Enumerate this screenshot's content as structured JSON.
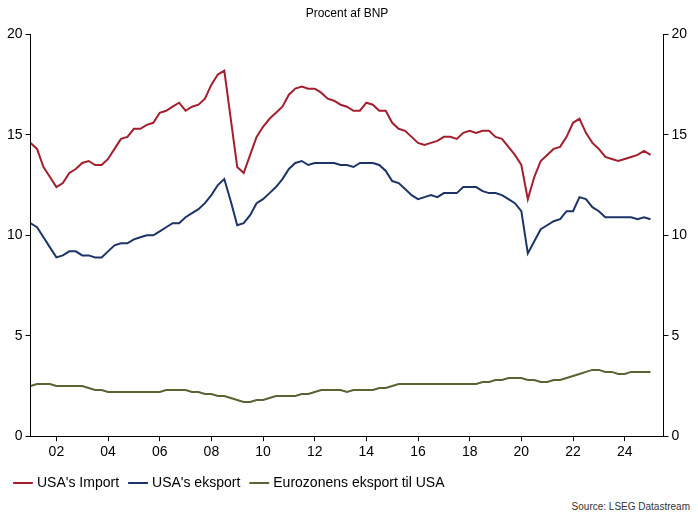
{
  "chart_data": {
    "type": "line",
    "title": "Procent af BNP",
    "source": "Source: LSEG Datastream",
    "x": [
      2001,
      2001.25,
      2001.5,
      2001.75,
      2002,
      2002.25,
      2002.5,
      2002.75,
      2003,
      2003.25,
      2003.5,
      2003.75,
      2004,
      2004.25,
      2004.5,
      2004.75,
      2005,
      2005.25,
      2005.5,
      2005.75,
      2006,
      2006.25,
      2006.5,
      2006.75,
      2007,
      2007.25,
      2007.5,
      2007.75,
      2008,
      2008.25,
      2008.5,
      2008.75,
      2009,
      2009.25,
      2009.5,
      2009.75,
      2010,
      2010.25,
      2010.5,
      2010.75,
      2011,
      2011.25,
      2011.5,
      2011.75,
      2012,
      2012.25,
      2012.5,
      2012.75,
      2013,
      2013.25,
      2013.5,
      2013.75,
      2014,
      2014.25,
      2014.5,
      2014.75,
      2015,
      2015.25,
      2015.5,
      2015.75,
      2016,
      2016.25,
      2016.5,
      2016.75,
      2017,
      2017.25,
      2017.5,
      2017.75,
      2018,
      2018.25,
      2018.5,
      2018.75,
      2019,
      2019.25,
      2019.5,
      2019.75,
      2020,
      2020.25,
      2020.5,
      2020.75,
      2021,
      2021.25,
      2021.5,
      2021.75,
      2022,
      2022.25,
      2022.5,
      2022.75,
      2023,
      2023.25,
      2023.5,
      2023.75,
      2024,
      2024.25,
      2024.5,
      2024.75,
      2025
    ],
    "series": [
      {
        "name": "USA's Import",
        "color": "#a31f2e",
        "values": [
          14.6,
          14.3,
          13.4,
          12.9,
          12.4,
          12.6,
          13.1,
          13.3,
          13.6,
          13.7,
          13.5,
          13.5,
          13.8,
          14.3,
          14.8,
          14.9,
          15.3,
          15.3,
          15.5,
          15.6,
          16.1,
          16.2,
          16.4,
          16.6,
          16.2,
          16.4,
          16.5,
          16.8,
          17.5,
          18.0,
          18.2,
          15.8,
          13.4,
          13.1,
          14.0,
          14.9,
          15.4,
          15.8,
          16.1,
          16.4,
          17.0,
          17.3,
          17.4,
          17.3,
          17.3,
          17.1,
          16.8,
          16.7,
          16.5,
          16.4,
          16.2,
          16.2,
          16.6,
          16.5,
          16.2,
          16.2,
          15.6,
          15.3,
          15.2,
          14.9,
          14.6,
          14.5,
          14.6,
          14.7,
          14.9,
          14.9,
          14.8,
          15.1,
          15.2,
          15.1,
          15.2,
          15.2,
          14.9,
          14.8,
          14.4,
          14.0,
          13.5,
          11.8,
          12.9,
          13.7,
          14.0,
          14.3,
          14.4,
          14.9,
          15.6,
          15.8,
          15.1,
          14.6,
          14.3,
          13.9,
          13.8,
          13.7,
          13.8,
          13.9,
          14.0,
          14.2,
          14.0
        ]
      },
      {
        "name": "USA's eksport",
        "color": "#1c3466",
        "values": [
          10.6,
          10.4,
          9.9,
          9.4,
          8.9,
          9.0,
          9.2,
          9.2,
          9.0,
          9.0,
          8.9,
          8.9,
          9.2,
          9.5,
          9.6,
          9.6,
          9.8,
          9.9,
          10.0,
          10.0,
          10.2,
          10.4,
          10.6,
          10.6,
          10.9,
          11.1,
          11.3,
          11.6,
          12.0,
          12.5,
          12.8,
          11.7,
          10.5,
          10.6,
          11.0,
          11.6,
          11.8,
          12.1,
          12.4,
          12.8,
          13.3,
          13.6,
          13.7,
          13.5,
          13.6,
          13.6,
          13.6,
          13.6,
          13.5,
          13.5,
          13.4,
          13.6,
          13.6,
          13.6,
          13.5,
          13.2,
          12.7,
          12.6,
          12.3,
          12.0,
          11.8,
          11.9,
          12.0,
          11.9,
          12.1,
          12.1,
          12.1,
          12.4,
          12.4,
          12.4,
          12.2,
          12.1,
          12.1,
          12.0,
          11.8,
          11.6,
          11.2,
          9.1,
          9.7,
          10.3,
          10.5,
          10.7,
          10.8,
          11.2,
          11.2,
          11.9,
          11.8,
          11.4,
          11.2,
          10.9,
          10.9,
          10.9,
          10.9,
          10.9,
          10.8,
          10.9,
          10.8
        ]
      },
      {
        "name": "Eurozonens eksport til USA",
        "color": "#5e6133",
        "values": [
          2.5,
          2.6,
          2.6,
          2.6,
          2.5,
          2.5,
          2.5,
          2.5,
          2.5,
          2.4,
          2.3,
          2.3,
          2.2,
          2.2,
          2.2,
          2.2,
          2.2,
          2.2,
          2.2,
          2.2,
          2.2,
          2.3,
          2.3,
          2.3,
          2.3,
          2.2,
          2.2,
          2.1,
          2.1,
          2.0,
          2.0,
          1.9,
          1.8,
          1.7,
          1.7,
          1.8,
          1.8,
          1.9,
          2.0,
          2.0,
          2.0,
          2.0,
          2.1,
          2.1,
          2.2,
          2.3,
          2.3,
          2.3,
          2.3,
          2.2,
          2.3,
          2.3,
          2.3,
          2.3,
          2.4,
          2.4,
          2.5,
          2.6,
          2.6,
          2.6,
          2.6,
          2.6,
          2.6,
          2.6,
          2.6,
          2.6,
          2.6,
          2.6,
          2.6,
          2.6,
          2.7,
          2.7,
          2.8,
          2.8,
          2.9,
          2.9,
          2.9,
          2.8,
          2.8,
          2.7,
          2.7,
          2.8,
          2.8,
          2.9,
          3.0,
          3.1,
          3.2,
          3.3,
          3.3,
          3.2,
          3.2,
          3.1,
          3.1,
          3.2,
          3.2,
          3.2,
          3.2
        ]
      }
    ],
    "xlim": [
      2001,
      2025.5
    ],
    "xticks": [
      {
        "value": 2002,
        "label": "02"
      },
      {
        "value": 2004,
        "label": "04"
      },
      {
        "value": 2006,
        "label": "06"
      },
      {
        "value": 2008,
        "label": "08"
      },
      {
        "value": 2010,
        "label": "10"
      },
      {
        "value": 2012,
        "label": "12"
      },
      {
        "value": 2014,
        "label": "14"
      },
      {
        "value": 2016,
        "label": "16"
      },
      {
        "value": 2018,
        "label": "18"
      },
      {
        "value": 2020,
        "label": "20"
      },
      {
        "value": 2022,
        "label": "22"
      },
      {
        "value": 2024,
        "label": "24"
      }
    ],
    "ylim": [
      0,
      20
    ],
    "yticks": [
      0,
      5,
      10,
      15,
      20
    ],
    "y2lim": [
      0,
      20
    ],
    "y2ticks": [
      0,
      5,
      10,
      15,
      20
    ],
    "grid": false,
    "legend": "bottom"
  }
}
